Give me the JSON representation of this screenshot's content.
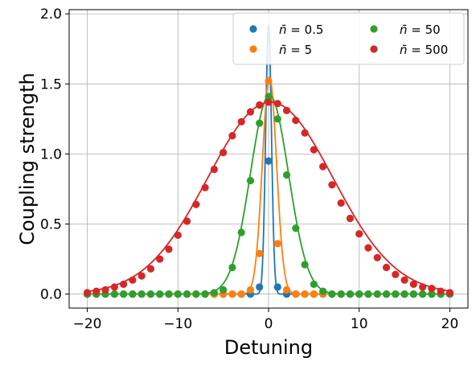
{
  "chart_data": {
    "type": "scatter",
    "xlabel": "Detuning",
    "ylabel": "Coupling strength",
    "xlim": [
      -22,
      22
    ],
    "ylim": [
      -0.1,
      2.03
    ],
    "xticks": [
      -20,
      -10,
      0,
      10,
      20
    ],
    "xtick_labels": [
      "−20",
      "−10",
      "0",
      "10",
      "20"
    ],
    "yticks": [
      0.0,
      0.5,
      1.0,
      1.5,
      2.0
    ],
    "ytick_labels": [
      "0.0",
      "0.5",
      "1.0",
      "1.5",
      "2.0"
    ],
    "grid": true,
    "legend_placement": "top-right",
    "legend_columns": 2,
    "series": [
      {
        "name": "n̄ = 0.5",
        "name_parts": [
          "n̄",
          " = 0.5"
        ],
        "color": "#1f77b4",
        "points_x": [
          -20,
          -19,
          -18,
          -17,
          -16,
          -15,
          -14,
          -13,
          -12,
          -11,
          -10,
          -9,
          -8,
          -7,
          -6,
          -5,
          -4,
          -3,
          -2,
          -1,
          0,
          1,
          2,
          3,
          4,
          5,
          6,
          7,
          8,
          9,
          10,
          11,
          12,
          13,
          14,
          15,
          16,
          17,
          18,
          19,
          20
        ],
        "points_y": [
          0,
          0,
          0,
          0,
          0,
          0,
          0,
          0,
          0,
          0,
          0,
          0,
          0,
          0,
          0,
          0,
          0,
          0,
          0,
          0.05,
          0.95,
          0.05,
          0,
          0,
          0,
          0,
          0,
          0,
          0,
          0,
          0,
          0,
          0,
          0,
          0,
          0,
          0,
          0,
          0,
          0,
          0
        ],
        "curve": {
          "peak": 1.92,
          "center": 0.0,
          "width": 0.32
        }
      },
      {
        "name": "n̄ = 5",
        "name_parts": [
          "n̄",
          " = 5"
        ],
        "color": "#ff7f0e",
        "points_x": [
          -20,
          -19,
          -18,
          -17,
          -16,
          -15,
          -14,
          -13,
          -12,
          -11,
          -10,
          -9,
          -8,
          -7,
          -6,
          -5,
          -4,
          -3,
          -2,
          -1,
          0,
          1,
          2,
          3,
          4,
          5,
          6,
          7,
          8,
          9,
          10,
          11,
          12,
          13,
          14,
          15,
          16,
          17,
          18,
          19,
          20
        ],
        "points_y": [
          0,
          0,
          0,
          0,
          0,
          0,
          0,
          0,
          0,
          0,
          0,
          0,
          0,
          0,
          0,
          0,
          0,
          0,
          0.03,
          0.29,
          1.52,
          0.36,
          0.03,
          0,
          0,
          0,
          0,
          0,
          0,
          0,
          0,
          0,
          0,
          0,
          0,
          0,
          0,
          0,
          0,
          0,
          0
        ],
        "curve": {
          "peak": 1.55,
          "center": 0.1,
          "width": 0.78
        }
      },
      {
        "name": "n̄ = 50",
        "name_parts": [
          "n̄",
          " = 50"
        ],
        "color": "#2ca02c",
        "points_x": [
          -20,
          -19,
          -18,
          -17,
          -16,
          -15,
          -14,
          -13,
          -12,
          -11,
          -10,
          -9,
          -8,
          -7,
          -6,
          -5,
          -4,
          -3,
          -2,
          -1,
          0,
          1,
          2,
          3,
          4,
          5,
          6,
          7,
          8,
          9,
          10,
          11,
          12,
          13,
          14,
          15,
          16,
          17,
          18,
          19,
          20
        ],
        "points_y": [
          0,
          0,
          0,
          0,
          0,
          0,
          0,
          0,
          0,
          0,
          0,
          0,
          0,
          0,
          0.01,
          0.03,
          0.19,
          0.44,
          0.81,
          1.22,
          1.41,
          1.25,
          0.85,
          0.47,
          0.21,
          0.07,
          0.02,
          0,
          0,
          0,
          0,
          0,
          0,
          0,
          0,
          0,
          0,
          0,
          0,
          0,
          0
        ],
        "curve": {
          "peak": 1.42,
          "center": 0.1,
          "width": 2.1
        }
      },
      {
        "name": "n̄ = 500",
        "name_parts": [
          "n̄",
          " = 500"
        ],
        "color": "#d62728",
        "points_x": [
          -20,
          -19,
          -18,
          -17,
          -16,
          -15,
          -14,
          -13,
          -12,
          -11,
          -10,
          -9,
          -8,
          -7,
          -6,
          -5,
          -4,
          -3,
          -2,
          -1,
          0,
          1,
          2,
          3,
          4,
          5,
          6,
          7,
          8,
          9,
          10,
          11,
          12,
          13,
          14,
          15,
          16,
          17,
          18,
          19,
          20
        ],
        "points_y": [
          0.01,
          0.02,
          0.03,
          0.05,
          0.07,
          0.1,
          0.13,
          0.18,
          0.25,
          0.32,
          0.42,
          0.52,
          0.64,
          0.76,
          0.89,
          1.01,
          1.13,
          1.23,
          1.3,
          1.35,
          1.37,
          1.36,
          1.31,
          1.24,
          1.15,
          1.03,
          0.91,
          0.78,
          0.65,
          0.54,
          0.43,
          0.33,
          0.26,
          0.19,
          0.14,
          0.1,
          0.07,
          0.05,
          0.04,
          0.02,
          0.01
        ],
        "curve": {
          "peak": 1.37,
          "center": 0.2,
          "width": 6.9
        }
      }
    ]
  }
}
